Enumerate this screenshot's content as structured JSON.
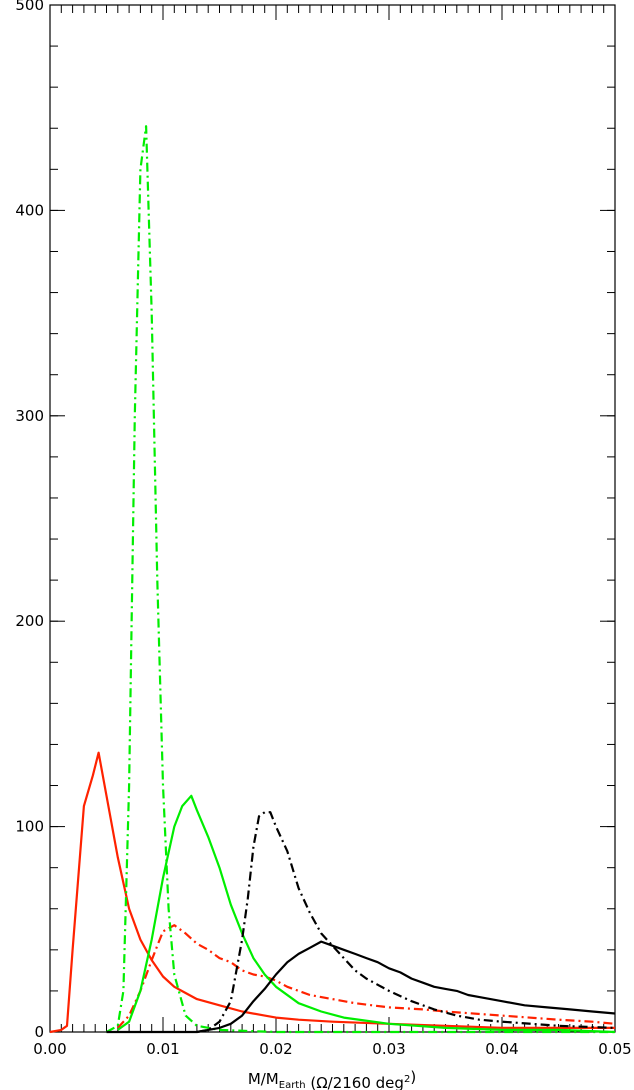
{
  "chart_data": {
    "type": "line",
    "title": "",
    "xlabel": {
      "parts": [
        {
          "text": "M/M"
        },
        {
          "text": "Earth",
          "sub": true
        },
        {
          "text": " (Ω/2160 deg"
        },
        {
          "text": "2",
          "sup": true
        },
        {
          "text": ")"
        }
      ]
    },
    "ylabel": "",
    "xlim": [
      0.0,
      0.05
    ],
    "ylim": [
      0,
      500
    ],
    "x_ticks": [
      0.0,
      0.01,
      0.02,
      0.03,
      0.04,
      0.05
    ],
    "x_tick_labels": [
      "0.00",
      "0.01",
      "0.02",
      "0.03",
      "0.04",
      "0.05"
    ],
    "y_ticks": [
      0,
      100,
      200,
      300,
      400,
      500
    ],
    "y_tick_labels": [
      "0",
      "100",
      "200",
      "300",
      "400",
      "500"
    ],
    "grid": false,
    "colors": {
      "black": "#000000",
      "red": "#ff2200",
      "green": "#00ee00"
    },
    "series": [
      {
        "color": "#ff2200",
        "style": "solid",
        "x": [
          0.0,
          0.001,
          0.0015,
          0.002,
          0.003,
          0.0038,
          0.0043,
          0.005,
          0.006,
          0.007,
          0.008,
          0.009,
          0.01,
          0.011,
          0.012,
          0.013,
          0.015,
          0.017,
          0.019,
          0.02,
          0.022,
          0.025,
          0.03,
          0.035,
          0.04,
          0.045,
          0.05
        ],
        "y": [
          0,
          1,
          3,
          40,
          110,
          125,
          136,
          115,
          85,
          60,
          45,
          35,
          27,
          22,
          19,
          16,
          13,
          10,
          8,
          7,
          6,
          5,
          4,
          3,
          2,
          2,
          2
        ]
      },
      {
        "color": "#ff2200",
        "style": "dashdot",
        "x": [
          0.006,
          0.007,
          0.008,
          0.009,
          0.0095,
          0.01,
          0.011,
          0.012,
          0.013,
          0.014,
          0.015,
          0.016,
          0.017,
          0.018,
          0.019,
          0.02,
          0.021,
          0.022,
          0.023,
          0.025,
          0.027,
          0.03,
          0.033,
          0.035,
          0.04,
          0.045,
          0.048,
          0.05
        ],
        "y": [
          2,
          8,
          20,
          35,
          42,
          49,
          52,
          48,
          43,
          40,
          36,
          34,
          30,
          28,
          27,
          25,
          22,
          20,
          18,
          16,
          14,
          12,
          11,
          10,
          8,
          6,
          5,
          4
        ]
      },
      {
        "color": "#00ee00",
        "style": "solid",
        "x": [
          0.006,
          0.007,
          0.008,
          0.009,
          0.01,
          0.011,
          0.0117,
          0.0125,
          0.013,
          0.014,
          0.015,
          0.016,
          0.017,
          0.018,
          0.019,
          0.02,
          0.022,
          0.024,
          0.026,
          0.03,
          0.035,
          0.04,
          0.045,
          0.05
        ],
        "y": [
          1,
          5,
          20,
          45,
          75,
          100,
          110,
          115,
          108,
          95,
          80,
          62,
          48,
          36,
          28,
          22,
          14,
          10,
          7,
          4,
          2,
          1,
          1,
          0
        ]
      },
      {
        "color": "#00ee00",
        "style": "dashdot",
        "x": [
          0.005,
          0.006,
          0.0065,
          0.007,
          0.0075,
          0.008,
          0.0085,
          0.009,
          0.0095,
          0.01,
          0.0105,
          0.011,
          0.012,
          0.013,
          0.015,
          0.02,
          0.03,
          0.05
        ],
        "y": [
          0,
          3,
          20,
          120,
          300,
          420,
          441,
          350,
          220,
          120,
          60,
          28,
          8,
          3,
          1,
          0,
          0,
          0
        ]
      },
      {
        "color": "#000000",
        "style": "solid",
        "x": [
          0.005,
          0.01,
          0.013,
          0.014,
          0.015,
          0.016,
          0.017,
          0.018,
          0.019,
          0.02,
          0.021,
          0.022,
          0.023,
          0.024,
          0.025,
          0.026,
          0.027,
          0.028,
          0.029,
          0.03,
          0.031,
          0.032,
          0.033,
          0.034,
          0.035,
          0.036,
          0.037,
          0.038,
          0.04,
          0.042,
          0.044,
          0.046,
          0.048,
          0.05
        ],
        "y": [
          0,
          0,
          0,
          1,
          2,
          4,
          8,
          15,
          21,
          28,
          34,
          38,
          41,
          44,
          42,
          40,
          38,
          36,
          34,
          31,
          29,
          26,
          24,
          22,
          21,
          20,
          18,
          17,
          15,
          13,
          12,
          11,
          10,
          9
        ]
      },
      {
        "color": "#000000",
        "style": "dashdot",
        "x": [
          0.013,
          0.014,
          0.015,
          0.016,
          0.017,
          0.0175,
          0.018,
          0.0185,
          0.019,
          0.0195,
          0.02,
          0.021,
          0.022,
          0.023,
          0.024,
          0.025,
          0.026,
          0.027,
          0.028,
          0.03,
          0.032,
          0.034,
          0.036,
          0.038,
          0.04,
          0.045,
          0.05
        ],
        "y": [
          0,
          1,
          5,
          15,
          45,
          65,
          90,
          105,
          107,
          107,
          100,
          88,
          70,
          58,
          48,
          42,
          36,
          30,
          26,
          20,
          15,
          11,
          8,
          6,
          5,
          3,
          2
        ]
      }
    ]
  }
}
